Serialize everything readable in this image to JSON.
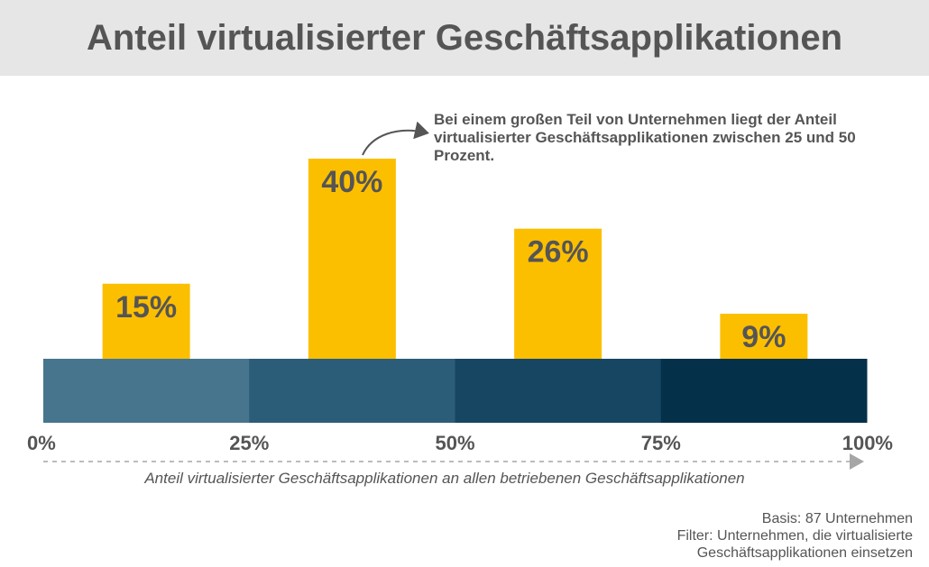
{
  "title": "Anteil virtualisierter Geschäftsapplikationen",
  "annotation": "Bei einem großen Teil von Unternehmen liegt der Anteil virtualisierter Geschäftsapplikationen zwischen 25 und 50 Prozent.",
  "footnote": {
    "basis": "Basis: 87 Unternehmen",
    "filter_line1": "Filter: Unternehmen, die virtualisierte",
    "filter_line2": "Geschäftsapplikationen einsetzen"
  },
  "colors": {
    "bar": "#fcbf00",
    "band": [
      "#47758e",
      "#2b5c78",
      "#174663",
      "#04304a"
    ],
    "text": "#555555",
    "arrow": "#a6a6a6"
  },
  "chart_data": {
    "type": "bar",
    "title": "Anteil virtualisierter Geschäftsapplikationen",
    "categories": [
      "0–25%",
      "25–50%",
      "50–75%",
      "75–100%"
    ],
    "values": [
      15,
      40,
      26,
      9
    ],
    "data_labels": [
      "15%",
      "40%",
      "26%",
      "9%"
    ],
    "x_ticks": [
      "0%",
      "25%",
      "50%",
      "75%",
      "100%"
    ],
    "xlabel": "Anteil virtualisierter Geschäftsapplikationen an allen betriebenen Geschäftsapplikationen",
    "ylabel": "",
    "ylim": [
      0,
      40
    ],
    "grid": false,
    "legend": "none"
  }
}
